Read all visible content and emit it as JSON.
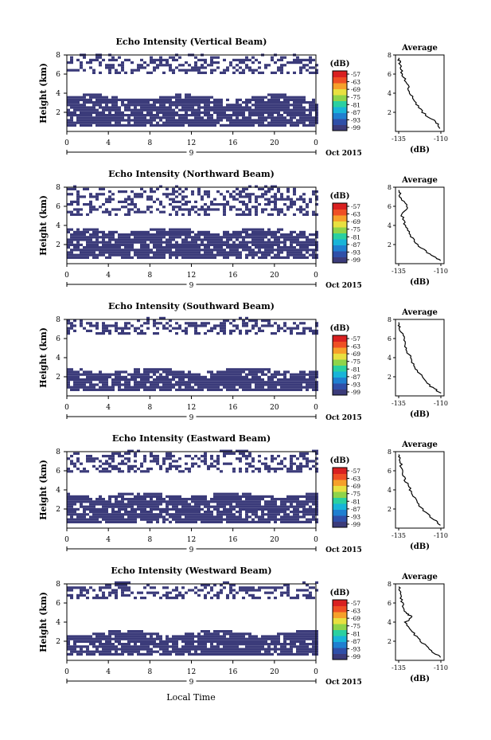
{
  "figure": {
    "colors": {
      "echo": "#3b3b7a",
      "line": "#000000",
      "colorbar": [
        "#3b3b7a",
        "#2f4fa8",
        "#1f7fd0",
        "#18b4d8",
        "#2ad0a0",
        "#8fd44a",
        "#e8e040",
        "#f6a02a",
        "#ef4f24",
        "#d92020"
      ]
    },
    "common": {
      "x_ticks": [
        "0",
        "4",
        "8",
        "12",
        "16",
        "20",
        "0"
      ],
      "date_day": "9",
      "date_month_year": "Oct 2015",
      "y_label": "Height (km)",
      "y_ticks": [
        "8",
        "6",
        "4",
        "2"
      ],
      "colorbar_unit": "(dB)",
      "colorbar_ticks": [
        "-57",
        "-63",
        "-69",
        "-75",
        "-81",
        "-87",
        "-93",
        "-99"
      ],
      "avg_title": "Average",
      "avg_x_ticks": [
        "-135",
        "-110"
      ],
      "avg_x_label": "(dB)",
      "x_label": "Local Time"
    }
  },
  "chart_data": [
    {
      "type": "heatmap",
      "title": "Echo Intensity (Vertical Beam)",
      "x_range_hours": [
        0,
        24
      ],
      "y_range_km": [
        0,
        8
      ],
      "color_range_db": [
        -99,
        -57
      ],
      "echo_layers": [
        {
          "base_km": 0.5,
          "top_km": 3.5
        },
        {
          "base_km": 6.0,
          "top_km": 7.8
        }
      ],
      "average_profile": {
        "height_km": [
          0.3,
          1,
          2,
          3,
          4,
          5,
          6,
          7,
          7.7
        ],
        "db": [
          -110,
          -113,
          -121,
          -125,
          -128,
          -130,
          -133,
          -134,
          -135
        ]
      }
    },
    {
      "type": "heatmap",
      "title": "Echo Intensity (Northward Beam)",
      "x_range_hours": [
        0,
        24
      ],
      "y_range_km": [
        0,
        8
      ],
      "color_range_db": [
        -99,
        -57
      ],
      "echo_layers": [
        {
          "base_km": 0.5,
          "top_km": 3.4
        },
        {
          "base_km": 5.0,
          "top_km": 7.8
        }
      ],
      "average_profile": {
        "height_km": [
          0.3,
          1,
          2,
          3,
          4,
          5,
          6,
          7,
          7.7
        ],
        "db": [
          -110,
          -117,
          -124,
          -128,
          -131,
          -133,
          -130,
          -134,
          -135
        ]
      }
    },
    {
      "type": "heatmap",
      "title": "Echo Intensity (Southward Beam)",
      "x_range_hours": [
        0,
        24
      ],
      "y_range_km": [
        0,
        8
      ],
      "color_range_db": [
        -99,
        -57
      ],
      "echo_layers": [
        {
          "base_km": 0.5,
          "top_km": 2.6
        },
        {
          "base_km": 6.4,
          "top_km": 7.8
        }
      ],
      "average_profile": {
        "height_km": [
          0.3,
          1,
          2,
          3,
          4,
          5,
          6,
          7,
          7.7
        ],
        "db": [
          -110,
          -116,
          -121,
          -126,
          -128,
          -131,
          -132,
          -134,
          -135
        ]
      }
    },
    {
      "type": "heatmap",
      "title": "Echo Intensity (Eastward Beam)",
      "x_range_hours": [
        0,
        24
      ],
      "y_range_km": [
        0,
        8
      ],
      "color_range_db": [
        -99,
        -57
      ],
      "echo_layers": [
        {
          "base_km": 0.5,
          "top_km": 3.4
        },
        {
          "base_km": 5.8,
          "top_km": 7.8
        }
      ],
      "average_profile": {
        "height_km": [
          0.3,
          1,
          2,
          3,
          4,
          5,
          6,
          7,
          7.7
        ],
        "db": [
          -110,
          -115,
          -121,
          -125,
          -128,
          -131,
          -133,
          -134,
          -135
        ]
      }
    },
    {
      "type": "heatmap",
      "title": "Echo Intensity (Westward Beam)",
      "x_range_hours": [
        0,
        24
      ],
      "y_range_km": [
        0,
        8
      ],
      "color_range_db": [
        -99,
        -57
      ],
      "echo_layers": [
        {
          "base_km": 0.5,
          "top_km": 2.8
        },
        {
          "base_km": 6.4,
          "top_km": 7.8
        }
      ],
      "average_profile": {
        "height_km": [
          0.3,
          1,
          2,
          3,
          4,
          4.5,
          5,
          6,
          7,
          7.7
        ],
        "db": [
          -110,
          -116,
          -122,
          -127,
          -131,
          -127,
          -131,
          -133,
          -134,
          -135
        ]
      }
    }
  ]
}
